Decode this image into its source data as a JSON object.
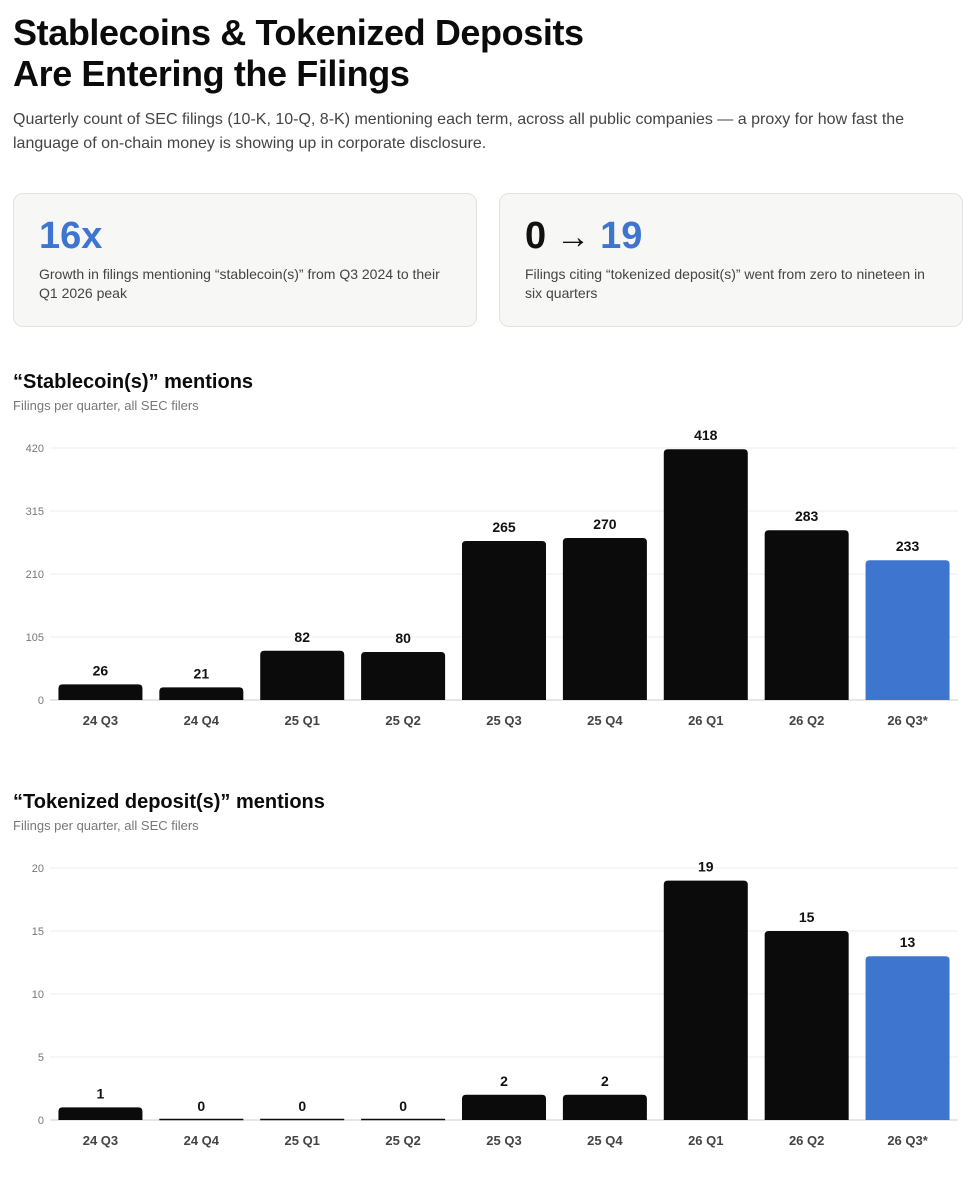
{
  "header": {
    "title_line1": "Stablecoins & Tokenized Deposits",
    "title_line2": "Are Entering the Filings",
    "subtitle": "Quarterly count of SEC filings (10-K, 10-Q, 8-K) mentioning each term, across all public companies — a proxy for how fast the language of on-chain money is showing up in corporate disclosure."
  },
  "stats": [
    {
      "value": "16x",
      "description": "Growth in filings mentioning “stablecoin(s)” from Q3 2024 to their Q1 2026 peak"
    },
    {
      "value_from": "0",
      "arrow": "→",
      "value_to": "19",
      "description": "Filings citing “tokenized deposit(s)” went from zero to nineteen in six quarters"
    }
  ],
  "colors": {
    "bar": "#0b0b0b",
    "highlight": "#3e76cf",
    "grid": "#ececec",
    "axis": "#cccccc"
  },
  "chart_data": [
    {
      "type": "bar",
      "title": "“Stablecoin(s)” mentions",
      "subtitle": "Filings per quarter, all SEC filers",
      "categories": [
        "24 Q3",
        "24 Q4",
        "25 Q1",
        "25 Q2",
        "25 Q3",
        "25 Q4",
        "26 Q1",
        "26 Q2",
        "26 Q3*"
      ],
      "values": [
        26,
        21,
        82,
        80,
        265,
        270,
        418,
        283,
        233
      ],
      "highlight_index": 8,
      "ylim": [
        0,
        420
      ],
      "yticks": [
        0,
        105,
        210,
        315,
        420
      ],
      "grid": true,
      "xlabel": "",
      "ylabel": ""
    },
    {
      "type": "bar",
      "title": "“Tokenized deposit(s)” mentions",
      "subtitle": "Filings per quarter, all SEC filers",
      "categories": [
        "24 Q3",
        "24 Q4",
        "25 Q1",
        "25 Q2",
        "25 Q3",
        "25 Q4",
        "26 Q1",
        "26 Q2",
        "26 Q3*"
      ],
      "values": [
        1,
        0,
        0,
        0,
        2,
        2,
        19,
        15,
        13
      ],
      "highlight_index": 8,
      "ylim": [
        0,
        20
      ],
      "yticks": [
        0,
        5,
        10,
        15,
        20
      ],
      "grid": true,
      "xlabel": "",
      "ylabel": ""
    }
  ]
}
